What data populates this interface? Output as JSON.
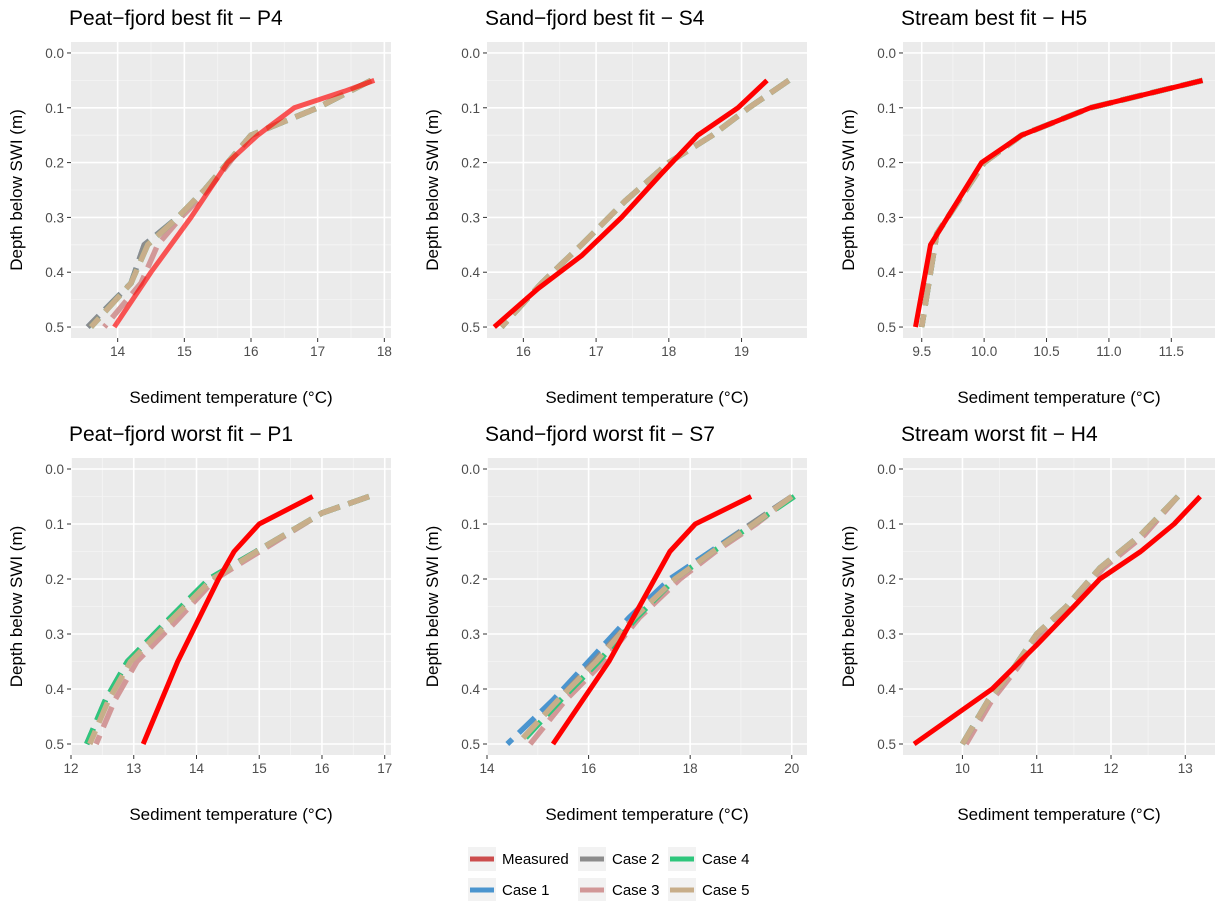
{
  "colors": {
    "Measured": "#ff0000",
    "Case 1": "#4b95cf",
    "Case 2": "#8c8c8c",
    "Case 3": "#d29898",
    "Case 4": "#2ec67c",
    "Case 5": "#c8ae8a"
  },
  "legend": {
    "items": [
      {
        "label": "Measured",
        "color": "#cc4d4d"
      },
      {
        "label": "Case 2",
        "color": "#8c8c8c"
      },
      {
        "label": "Case 4",
        "color": "#2ec67c"
      },
      {
        "label": "Case 1",
        "color": "#4b95cf"
      },
      {
        "label": "Case 3",
        "color": "#d29898"
      },
      {
        "label": "Case 5",
        "color": "#c8ae8a"
      }
    ]
  },
  "chart_data": [
    {
      "type": "line",
      "title": "Peat−fjord best fit − P4",
      "xlabel": "Sediment temperature (°C)",
      "ylabel": "Depth below SWI (m)",
      "xlim": [
        13.3,
        18.1
      ],
      "ylim": [
        0.52,
        -0.02
      ],
      "y_reversed": true,
      "xticks": [
        14,
        15,
        16,
        17,
        18
      ],
      "xtick_labels": [
        "14",
        "15",
        "16",
        "17",
        "18"
      ],
      "yticks": [
        0.0,
        0.1,
        0.2,
        0.3,
        0.4,
        0.5
      ],
      "ytick_labels": [
        "0.0",
        "0.1",
        "0.2",
        "0.3",
        "0.4",
        "0.5"
      ],
      "series": [
        {
          "name": "Measured",
          "x": [
            17.85,
            17.4,
            16.65,
            16.1,
            15.65,
            15.1,
            14.5,
            13.95
          ],
          "y": [
            0.05,
            0.07,
            0.1,
            0.15,
            0.2,
            0.3,
            0.4,
            0.5
          ]
        },
        {
          "name": "Case 1",
          "x": [
            17.8,
            17.0,
            16.0,
            15.3,
            14.9,
            14.4,
            14.2,
            13.55
          ],
          "y": [
            0.05,
            0.1,
            0.15,
            0.25,
            0.3,
            0.35,
            0.42,
            0.5
          ]
        },
        {
          "name": "Case 2",
          "x": [
            17.8,
            17.0,
            16.0,
            15.3,
            14.9,
            14.4,
            14.2,
            13.55
          ],
          "y": [
            0.05,
            0.1,
            0.15,
            0.25,
            0.3,
            0.35,
            0.42,
            0.5
          ]
        },
        {
          "name": "Case 3",
          "x": [
            17.8,
            17.0,
            16.0,
            15.35,
            14.95,
            14.6,
            14.35,
            13.8
          ],
          "y": [
            0.05,
            0.1,
            0.15,
            0.25,
            0.3,
            0.35,
            0.42,
            0.5
          ]
        },
        {
          "name": "Case 4",
          "x": [
            17.8,
            17.0,
            16.0,
            15.3,
            14.9,
            14.45,
            14.2,
            13.6
          ],
          "y": [
            0.05,
            0.1,
            0.15,
            0.25,
            0.3,
            0.35,
            0.42,
            0.5
          ]
        },
        {
          "name": "Case 5",
          "x": [
            17.8,
            17.0,
            16.0,
            15.3,
            14.9,
            14.45,
            14.2,
            13.6
          ],
          "y": [
            0.05,
            0.1,
            0.15,
            0.25,
            0.3,
            0.35,
            0.42,
            0.5
          ]
        }
      ]
    },
    {
      "type": "line",
      "title": "Sand−fjord best fit − S4",
      "xlabel": "Sediment temperature (°C)",
      "ylabel": "Depth below SWI (m)",
      "xlim": [
        15.5,
        19.9
      ],
      "ylim": [
        0.52,
        -0.02
      ],
      "y_reversed": true,
      "xticks": [
        16,
        17,
        18,
        19
      ],
      "xtick_labels": [
        "16",
        "17",
        "18",
        "19"
      ],
      "yticks": [
        0.0,
        0.1,
        0.2,
        0.3,
        0.4,
        0.5
      ],
      "ytick_labels": [
        "0.0",
        "0.1",
        "0.2",
        "0.3",
        "0.4",
        "0.5"
      ],
      "series": [
        {
          "name": "Measured",
          "x": [
            19.35,
            18.95,
            18.4,
            17.9,
            17.35,
            16.8,
            16.2,
            15.6
          ],
          "y": [
            0.05,
            0.1,
            0.15,
            0.22,
            0.3,
            0.37,
            0.43,
            0.5
          ]
        },
        {
          "name": "Case 1",
          "x": [
            19.65,
            19.1,
            18.6,
            18.0,
            17.4,
            16.8,
            16.25,
            15.7
          ],
          "y": [
            0.05,
            0.1,
            0.15,
            0.2,
            0.27,
            0.35,
            0.42,
            0.5
          ]
        },
        {
          "name": "Case 2",
          "x": [
            19.65,
            19.1,
            18.6,
            18.0,
            17.4,
            16.8,
            16.25,
            15.7
          ],
          "y": [
            0.05,
            0.1,
            0.15,
            0.2,
            0.27,
            0.35,
            0.42,
            0.5
          ]
        },
        {
          "name": "Case 3",
          "x": [
            19.65,
            19.1,
            18.6,
            18.0,
            17.4,
            16.8,
            16.25,
            15.7
          ],
          "y": [
            0.05,
            0.1,
            0.15,
            0.2,
            0.27,
            0.35,
            0.42,
            0.5
          ]
        },
        {
          "name": "Case 4",
          "x": [
            19.65,
            19.1,
            18.6,
            18.0,
            17.4,
            16.8,
            16.25,
            15.7
          ],
          "y": [
            0.05,
            0.1,
            0.15,
            0.2,
            0.27,
            0.35,
            0.42,
            0.5
          ]
        },
        {
          "name": "Case 5",
          "x": [
            19.65,
            19.1,
            18.6,
            18.0,
            17.4,
            16.8,
            16.25,
            15.7
          ],
          "y": [
            0.05,
            0.1,
            0.15,
            0.2,
            0.27,
            0.35,
            0.42,
            0.5
          ]
        }
      ]
    },
    {
      "type": "line",
      "title": "Stream best fit − H5",
      "xlabel": "Sediment temperature (°C)",
      "ylabel": "Depth below SWI (m)",
      "xlim": [
        9.35,
        11.85
      ],
      "ylim": [
        0.52,
        -0.02
      ],
      "y_reversed": true,
      "xticks": [
        9.5,
        10.0,
        10.5,
        11.0,
        11.5
      ],
      "xtick_labels": [
        "9.5",
        "10.0",
        "10.5",
        "11.0",
        "11.5"
      ],
      "yticks": [
        0.0,
        0.1,
        0.2,
        0.3,
        0.4,
        0.5
      ],
      "ytick_labels": [
        "0.0",
        "0.1",
        "0.2",
        "0.3",
        "0.4",
        "0.5"
      ],
      "series": [
        {
          "name": "Measured",
          "x": [
            11.75,
            10.85,
            10.3,
            9.98,
            9.57,
            9.45
          ],
          "y": [
            0.05,
            0.1,
            0.15,
            0.2,
            0.35,
            0.5
          ]
        },
        {
          "name": "Case 1",
          "x": [
            11.75,
            10.85,
            10.3,
            10.0,
            9.62,
            9.5
          ],
          "y": [
            0.05,
            0.1,
            0.15,
            0.2,
            0.33,
            0.5
          ]
        },
        {
          "name": "Case 2",
          "x": [
            11.75,
            10.85,
            10.3,
            10.0,
            9.62,
            9.5
          ],
          "y": [
            0.05,
            0.1,
            0.15,
            0.2,
            0.33,
            0.5
          ]
        },
        {
          "name": "Case 3",
          "x": [
            11.75,
            10.85,
            10.3,
            10.0,
            9.62,
            9.5
          ],
          "y": [
            0.05,
            0.1,
            0.15,
            0.2,
            0.33,
            0.5
          ]
        },
        {
          "name": "Case 4",
          "x": [
            11.75,
            10.85,
            10.3,
            10.0,
            9.62,
            9.5
          ],
          "y": [
            0.05,
            0.1,
            0.15,
            0.2,
            0.33,
            0.5
          ]
        },
        {
          "name": "Case 5",
          "x": [
            11.75,
            10.85,
            10.3,
            10.0,
            9.62,
            9.5
          ],
          "y": [
            0.05,
            0.1,
            0.15,
            0.2,
            0.33,
            0.5
          ]
        }
      ]
    },
    {
      "type": "line",
      "title": "Peat−fjord worst fit − P1",
      "xlabel": "Sediment temperature (°C)",
      "ylabel": "Depth below SWI (m)",
      "xlim": [
        12.0,
        17.1
      ],
      "ylim": [
        0.52,
        -0.02
      ],
      "y_reversed": true,
      "xticks": [
        12,
        13,
        14,
        15,
        16,
        17
      ],
      "xtick_labels": [
        "12",
        "13",
        "14",
        "15",
        "16",
        "17"
      ],
      "yticks": [
        0.0,
        0.1,
        0.2,
        0.3,
        0.4,
        0.5
      ],
      "ytick_labels": [
        "0.0",
        "0.1",
        "0.2",
        "0.3",
        "0.4",
        "0.5"
      ],
      "series": [
        {
          "name": "Measured",
          "x": [
            15.85,
            15.0,
            14.6,
            14.35,
            13.7,
            13.15
          ],
          "y": [
            0.05,
            0.1,
            0.15,
            0.2,
            0.35,
            0.5
          ]
        },
        {
          "name": "Case 1",
          "x": [
            16.75,
            16.0,
            15.1,
            14.2,
            13.5,
            12.9,
            12.55,
            12.25
          ],
          "y": [
            0.05,
            0.08,
            0.14,
            0.2,
            0.28,
            0.35,
            0.42,
            0.5
          ]
        },
        {
          "name": "Case 2",
          "x": [
            16.75,
            16.0,
            15.1,
            14.2,
            13.5,
            12.9,
            12.55,
            12.25
          ],
          "y": [
            0.05,
            0.08,
            0.14,
            0.2,
            0.28,
            0.35,
            0.42,
            0.5
          ]
        },
        {
          "name": "Case 3",
          "x": [
            16.75,
            16.0,
            15.15,
            14.3,
            13.65,
            13.05,
            12.7,
            12.4
          ],
          "y": [
            0.05,
            0.08,
            0.14,
            0.2,
            0.28,
            0.35,
            0.42,
            0.5
          ]
        },
        {
          "name": "Case 4",
          "x": [
            16.75,
            16.0,
            15.1,
            14.2,
            13.5,
            12.9,
            12.55,
            12.25
          ],
          "y": [
            0.05,
            0.08,
            0.14,
            0.2,
            0.28,
            0.35,
            0.42,
            0.5
          ]
        },
        {
          "name": "Case 5",
          "x": [
            16.75,
            16.0,
            15.1,
            14.25,
            13.55,
            12.95,
            12.6,
            12.3
          ],
          "y": [
            0.05,
            0.08,
            0.14,
            0.2,
            0.28,
            0.35,
            0.42,
            0.5
          ]
        }
      ]
    },
    {
      "type": "line",
      "title": "Sand−fjord worst fit − S7",
      "xlabel": "Sediment temperature (°C)",
      "ylabel": "Depth below SWI (m)",
      "xlim": [
        14.0,
        20.3
      ],
      "ylim": [
        0.52,
        -0.02
      ],
      "y_reversed": true,
      "xticks": [
        14,
        16,
        18,
        20
      ],
      "xtick_labels": [
        "14",
        "16",
        "18",
        "20"
      ],
      "yticks": [
        0.0,
        0.1,
        0.2,
        0.3,
        0.4,
        0.5
      ],
      "ytick_labels": [
        "0.0",
        "0.1",
        "0.2",
        "0.3",
        "0.4",
        "0.5"
      ],
      "series": [
        {
          "name": "Measured",
          "x": [
            19.2,
            18.1,
            17.6,
            17.0,
            16.4,
            15.3
          ],
          "y": [
            0.05,
            0.1,
            0.15,
            0.25,
            0.35,
            0.5
          ]
        },
        {
          "name": "Case 1",
          "x": [
            20.0,
            19.2,
            18.4,
            17.6,
            16.8,
            16.0,
            15.3,
            14.4
          ],
          "y": [
            0.05,
            0.1,
            0.15,
            0.2,
            0.27,
            0.35,
            0.42,
            0.5
          ]
        },
        {
          "name": "Case 2",
          "x": [
            20.0,
            19.2,
            18.45,
            17.7,
            16.9,
            16.1,
            15.4,
            14.6
          ],
          "y": [
            0.05,
            0.1,
            0.15,
            0.2,
            0.27,
            0.35,
            0.42,
            0.5
          ]
        },
        {
          "name": "Case 3",
          "x": [
            20.0,
            19.3,
            18.5,
            17.8,
            17.0,
            16.3,
            15.55,
            14.85
          ],
          "y": [
            0.05,
            0.1,
            0.15,
            0.2,
            0.27,
            0.35,
            0.42,
            0.5
          ]
        },
        {
          "name": "Case 4",
          "x": [
            20.05,
            19.25,
            18.45,
            17.7,
            16.95,
            16.2,
            15.45,
            14.65
          ],
          "y": [
            0.05,
            0.1,
            0.15,
            0.2,
            0.27,
            0.35,
            0.42,
            0.5
          ]
        },
        {
          "name": "Case 5",
          "x": [
            20.0,
            19.25,
            18.45,
            17.7,
            16.9,
            16.15,
            15.4,
            14.6
          ],
          "y": [
            0.05,
            0.1,
            0.15,
            0.2,
            0.27,
            0.35,
            0.42,
            0.5
          ]
        }
      ]
    },
    {
      "type": "line",
      "title": "Stream worst fit − H4",
      "xlabel": "Sediment temperature (°C)",
      "ylabel": "Depth below SWI (m)",
      "xlim": [
        9.2,
        13.4
      ],
      "ylim": [
        0.52,
        -0.02
      ],
      "y_reversed": true,
      "xticks": [
        10,
        11,
        12,
        13
      ],
      "xtick_labels": [
        "10",
        "11",
        "12",
        "13"
      ],
      "yticks": [
        0.0,
        0.1,
        0.2,
        0.3,
        0.4,
        0.5
      ],
      "ytick_labels": [
        "0.0",
        "0.1",
        "0.2",
        "0.3",
        "0.4",
        "0.5"
      ],
      "series": [
        {
          "name": "Measured",
          "x": [
            13.2,
            12.85,
            12.4,
            11.85,
            11.5,
            11.0,
            10.4,
            9.35
          ],
          "y": [
            0.05,
            0.1,
            0.15,
            0.2,
            0.25,
            0.32,
            0.4,
            0.5
          ]
        },
        {
          "name": "Case 1",
          "x": [
            12.9,
            12.4,
            11.85,
            11.4,
            11.0,
            10.7,
            10.35,
            10.0
          ],
          "y": [
            0.05,
            0.12,
            0.18,
            0.25,
            0.3,
            0.36,
            0.42,
            0.5
          ]
        },
        {
          "name": "Case 2",
          "x": [
            12.9,
            12.4,
            11.85,
            11.4,
            11.0,
            10.7,
            10.35,
            10.0
          ],
          "y": [
            0.05,
            0.12,
            0.18,
            0.25,
            0.3,
            0.36,
            0.42,
            0.5
          ]
        },
        {
          "name": "Case 3",
          "x": [
            12.9,
            12.45,
            11.9,
            11.45,
            11.05,
            10.75,
            10.4,
            10.05
          ],
          "y": [
            0.05,
            0.12,
            0.18,
            0.25,
            0.3,
            0.36,
            0.42,
            0.5
          ]
        },
        {
          "name": "Case 4",
          "x": [
            12.9,
            12.4,
            11.85,
            11.4,
            11.0,
            10.7,
            10.35,
            10.0
          ],
          "y": [
            0.05,
            0.12,
            0.18,
            0.25,
            0.3,
            0.36,
            0.42,
            0.5
          ]
        },
        {
          "name": "Case 5",
          "x": [
            12.9,
            12.4,
            11.85,
            11.4,
            11.0,
            10.7,
            10.35,
            10.0
          ],
          "y": [
            0.05,
            0.12,
            0.18,
            0.25,
            0.3,
            0.36,
            0.42,
            0.5
          ]
        }
      ]
    }
  ]
}
